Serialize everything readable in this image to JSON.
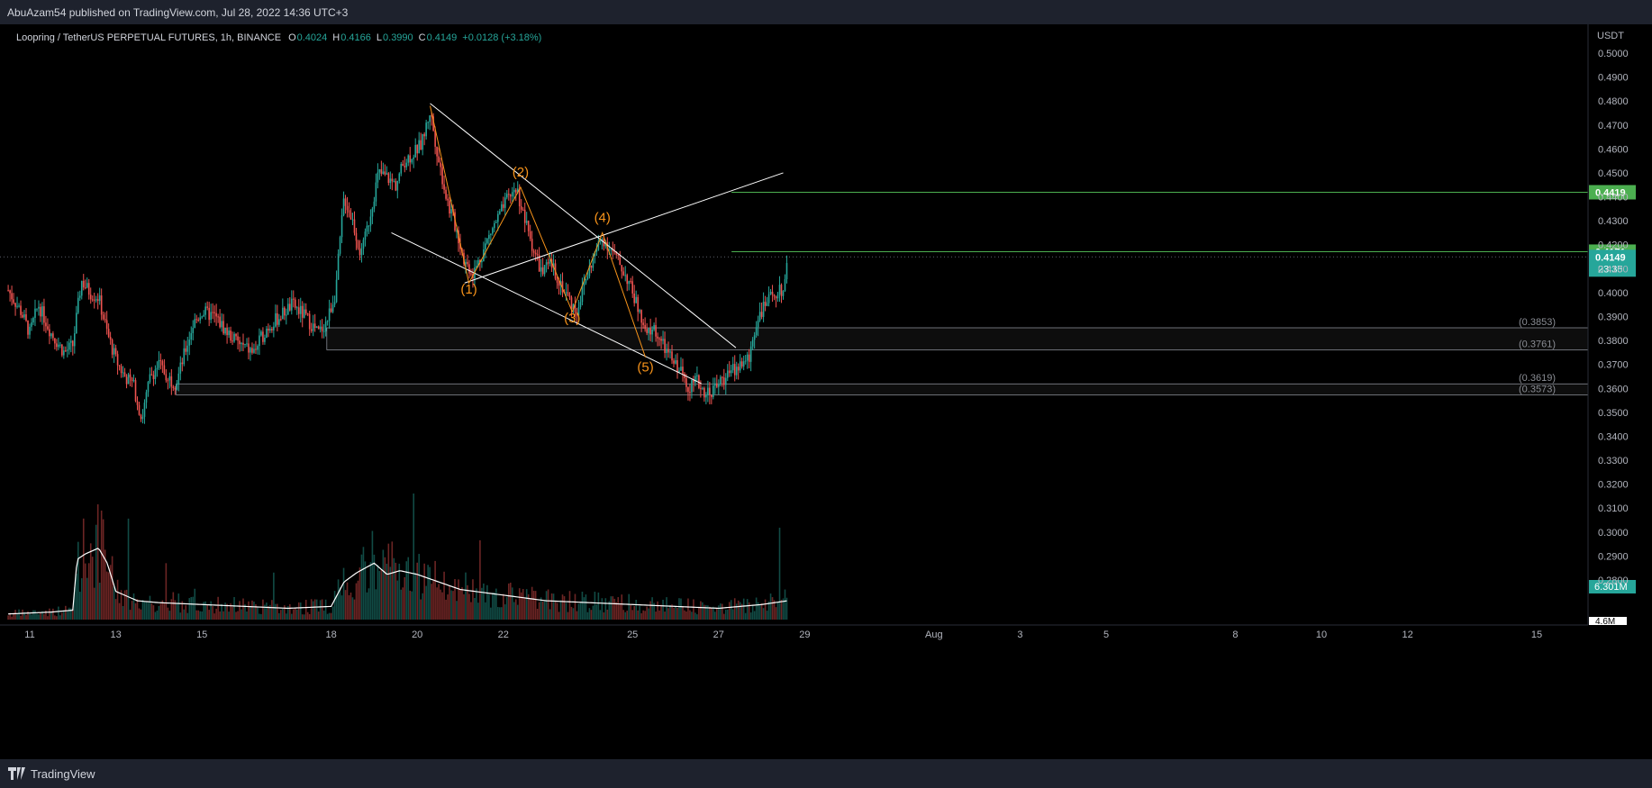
{
  "header": {
    "published": "AbuAzam54 published on TradingView.com, Jul 28, 2022 14:36 UTC+3"
  },
  "footer": {
    "brand": "TradingView"
  },
  "colors": {
    "up": "#26a69a",
    "down": "#ef5350",
    "wave": "#f7931a",
    "trendline": "#ffffff",
    "target_line": "#4caf50",
    "background": "#000000"
  },
  "chart_data": {
    "type": "candlestick",
    "symbol_title": "Loopring / TetherUS PERPETUAL FUTURES, 1h, BINANCE",
    "ohlc": {
      "o_label": "O",
      "o": "0.4024",
      "h_label": "H",
      "h": "0.4166",
      "l_label": "L",
      "l": "0.3990",
      "c_label": "C",
      "c": "0.4149",
      "change": "+0.0128 (+3.18%)"
    },
    "y_axis": {
      "unit": "USDT",
      "range": [
        0.27,
        0.51
      ],
      "ticks": [
        "0.5000",
        "0.4900",
        "0.4800",
        "0.4700",
        "0.4600",
        "0.4500",
        "0.4400",
        "0.4300",
        "0.4200",
        "0.4100",
        "0.4000",
        "0.3900",
        "0.3800",
        "0.3700",
        "0.3600",
        "0.3500",
        "0.3400",
        "0.3300",
        "0.3200",
        "0.3100",
        "0.3000",
        "0.2900",
        "0.2800"
      ]
    },
    "x_axis": {
      "labels": [
        {
          "day": 11,
          "label": "11"
        },
        {
          "day": 13,
          "label": "13"
        },
        {
          "day": 15,
          "label": "15"
        },
        {
          "day": 18,
          "label": "18"
        },
        {
          "day": 20,
          "label": "20"
        },
        {
          "day": 22,
          "label": "22"
        },
        {
          "day": 25,
          "label": "25"
        },
        {
          "day": 27,
          "label": "27"
        },
        {
          "day": 29,
          "label": "29"
        },
        {
          "day": 32,
          "label": "Aug"
        },
        {
          "day": 34,
          "label": "3"
        },
        {
          "day": 36,
          "label": "5"
        },
        {
          "day": 39,
          "label": "8"
        },
        {
          "day": 41,
          "label": "10"
        },
        {
          "day": 43,
          "label": "12"
        },
        {
          "day": 46,
          "label": "15"
        }
      ],
      "units": "days (July 2022; 32 = Aug 1)"
    },
    "price_path": [
      [
        10.5,
        0.401
      ],
      [
        10.8,
        0.392
      ],
      [
        11.0,
        0.383
      ],
      [
        11.2,
        0.395
      ],
      [
        11.5,
        0.383
      ],
      [
        11.8,
        0.375
      ],
      [
        12.0,
        0.378
      ],
      [
        12.2,
        0.405
      ],
      [
        12.4,
        0.4
      ],
      [
        12.6,
        0.398
      ],
      [
        12.8,
        0.383
      ],
      [
        13.0,
        0.372
      ],
      [
        13.2,
        0.365
      ],
      [
        13.4,
        0.362
      ],
      [
        13.6,
        0.347
      ],
      [
        13.8,
        0.365
      ],
      [
        14.0,
        0.37
      ],
      [
        14.2,
        0.365
      ],
      [
        14.4,
        0.362
      ],
      [
        14.6,
        0.375
      ],
      [
        14.8,
        0.387
      ],
      [
        15.0,
        0.392
      ],
      [
        15.3,
        0.39
      ],
      [
        15.6,
        0.383
      ],
      [
        15.9,
        0.378
      ],
      [
        16.2,
        0.375
      ],
      [
        16.5,
        0.385
      ],
      [
        16.8,
        0.39
      ],
      [
        17.1,
        0.395
      ],
      [
        17.4,
        0.39
      ],
      [
        17.7,
        0.383
      ],
      [
        17.9,
        0.388
      ],
      [
        18.1,
        0.4
      ],
      [
        18.3,
        0.44
      ],
      [
        18.5,
        0.43
      ],
      [
        18.7,
        0.415
      ],
      [
        18.9,
        0.432
      ],
      [
        19.1,
        0.45
      ],
      [
        19.3,
        0.448
      ],
      [
        19.5,
        0.445
      ],
      [
        19.7,
        0.455
      ],
      [
        19.9,
        0.458
      ],
      [
        20.1,
        0.462
      ],
      [
        20.3,
        0.476
      ],
      [
        20.5,
        0.455
      ],
      [
        20.7,
        0.438
      ],
      [
        20.9,
        0.427
      ],
      [
        21.1,
        0.413
      ],
      [
        21.3,
        0.408
      ],
      [
        21.5,
        0.416
      ],
      [
        21.7,
        0.425
      ],
      [
        21.9,
        0.432
      ],
      [
        22.1,
        0.439
      ],
      [
        22.3,
        0.444
      ],
      [
        22.5,
        0.43
      ],
      [
        22.7,
        0.418
      ],
      [
        22.9,
        0.408
      ],
      [
        23.1,
        0.412
      ],
      [
        23.3,
        0.405
      ],
      [
        23.5,
        0.398
      ],
      [
        23.7,
        0.392
      ],
      [
        23.9,
        0.405
      ],
      [
        24.1,
        0.415
      ],
      [
        24.3,
        0.423
      ],
      [
        24.5,
        0.418
      ],
      [
        24.7,
        0.412
      ],
      [
        24.9,
        0.405
      ],
      [
        25.1,
        0.395
      ],
      [
        25.3,
        0.382
      ],
      [
        25.5,
        0.385
      ],
      [
        25.7,
        0.378
      ],
      [
        25.9,
        0.372
      ],
      [
        26.1,
        0.368
      ],
      [
        26.3,
        0.361
      ],
      [
        26.5,
        0.363
      ],
      [
        26.7,
        0.358
      ],
      [
        26.9,
        0.36
      ],
      [
        27.1,
        0.364
      ],
      [
        27.3,
        0.367
      ],
      [
        27.5,
        0.37
      ],
      [
        27.7,
        0.372
      ],
      [
        27.9,
        0.39
      ],
      [
        28.1,
        0.395
      ],
      [
        28.3,
        0.4
      ],
      [
        28.5,
        0.401
      ],
      [
        28.6,
        0.4149
      ]
    ],
    "volume_path": [
      [
        10.5,
        0.3
      ],
      [
        11.5,
        0.4
      ],
      [
        12.0,
        0.5
      ],
      [
        12.1,
        3.2
      ],
      [
        12.3,
        3.5
      ],
      [
        12.6,
        3.8
      ],
      [
        12.8,
        3.0
      ],
      [
        13.0,
        1.5
      ],
      [
        13.5,
        1.0
      ],
      [
        14.0,
        0.9
      ],
      [
        15.0,
        0.8
      ],
      [
        16.0,
        0.7
      ],
      [
        17.0,
        0.6
      ],
      [
        18.0,
        0.7
      ],
      [
        18.3,
        2.0
      ],
      [
        18.6,
        2.5
      ],
      [
        19.0,
        3.0
      ],
      [
        19.3,
        2.4
      ],
      [
        19.6,
        2.6
      ],
      [
        20.0,
        2.4
      ],
      [
        20.5,
        2.0
      ],
      [
        21.0,
        1.6
      ],
      [
        22.0,
        1.3
      ],
      [
        23.0,
        1.0
      ],
      [
        24.0,
        0.9
      ],
      [
        25.0,
        0.8
      ],
      [
        26.0,
        0.7
      ],
      [
        27.0,
        0.6
      ],
      [
        28.0,
        0.8
      ],
      [
        28.6,
        1.0
      ]
    ],
    "wave_path": [
      [
        20.3,
        0.478
      ],
      [
        21.2,
        0.404
      ],
      [
        22.4,
        0.444
      ],
      [
        23.6,
        0.392
      ],
      [
        24.3,
        0.425
      ],
      [
        25.3,
        0.373
      ]
    ],
    "wave_labels": [
      {
        "label": "(1)",
        "day": 21.2,
        "price": 0.3995
      },
      {
        "label": "(2)",
        "day": 22.4,
        "price": 0.4485
      },
      {
        "label": "(3)",
        "day": 23.6,
        "price": 0.3875
      },
      {
        "label": "(4)",
        "day": 24.3,
        "price": 0.4295
      },
      {
        "label": "(5)",
        "day": 25.3,
        "price": 0.367
      }
    ],
    "trendlines": [
      {
        "name": "upper-channel",
        "from": [
          20.3,
          0.479
        ],
        "to": [
          27.4,
          0.377
        ]
      },
      {
        "name": "lower-channel",
        "from": [
          19.4,
          0.425
        ],
        "to": [
          26.6,
          0.362
        ]
      },
      {
        "name": "breakout-ray",
        "from": [
          21.1,
          0.404
        ],
        "to": [
          28.5,
          0.45
        ]
      }
    ],
    "zones": [
      {
        "name": "upper-zone",
        "from_day": 17.9,
        "top": 0.3853,
        "bottom": 0.3761,
        "top_label": "(0.3853)",
        "bottom_label": "(0.3761)"
      },
      {
        "name": "lower-zone",
        "from_day": 14.4,
        "top": 0.3619,
        "bottom": 0.3573,
        "top_label": "(0.3619)",
        "bottom_label": "(0.3573)"
      }
    ],
    "targets": [
      {
        "name": "target-high",
        "price": 0.4419,
        "from_day": 27.3,
        "label": "0.4419"
      },
      {
        "name": "target-low",
        "price": 0.4171,
        "from_day": 27.3,
        "label": "0.4171"
      }
    ],
    "last_price": {
      "price": 0.4149,
      "label": "0.4149",
      "countdown": "23:35"
    },
    "volume_badge": {
      "label": "6.301M"
    },
    "volume_avg_badge": {
      "label": "4.6M"
    }
  }
}
